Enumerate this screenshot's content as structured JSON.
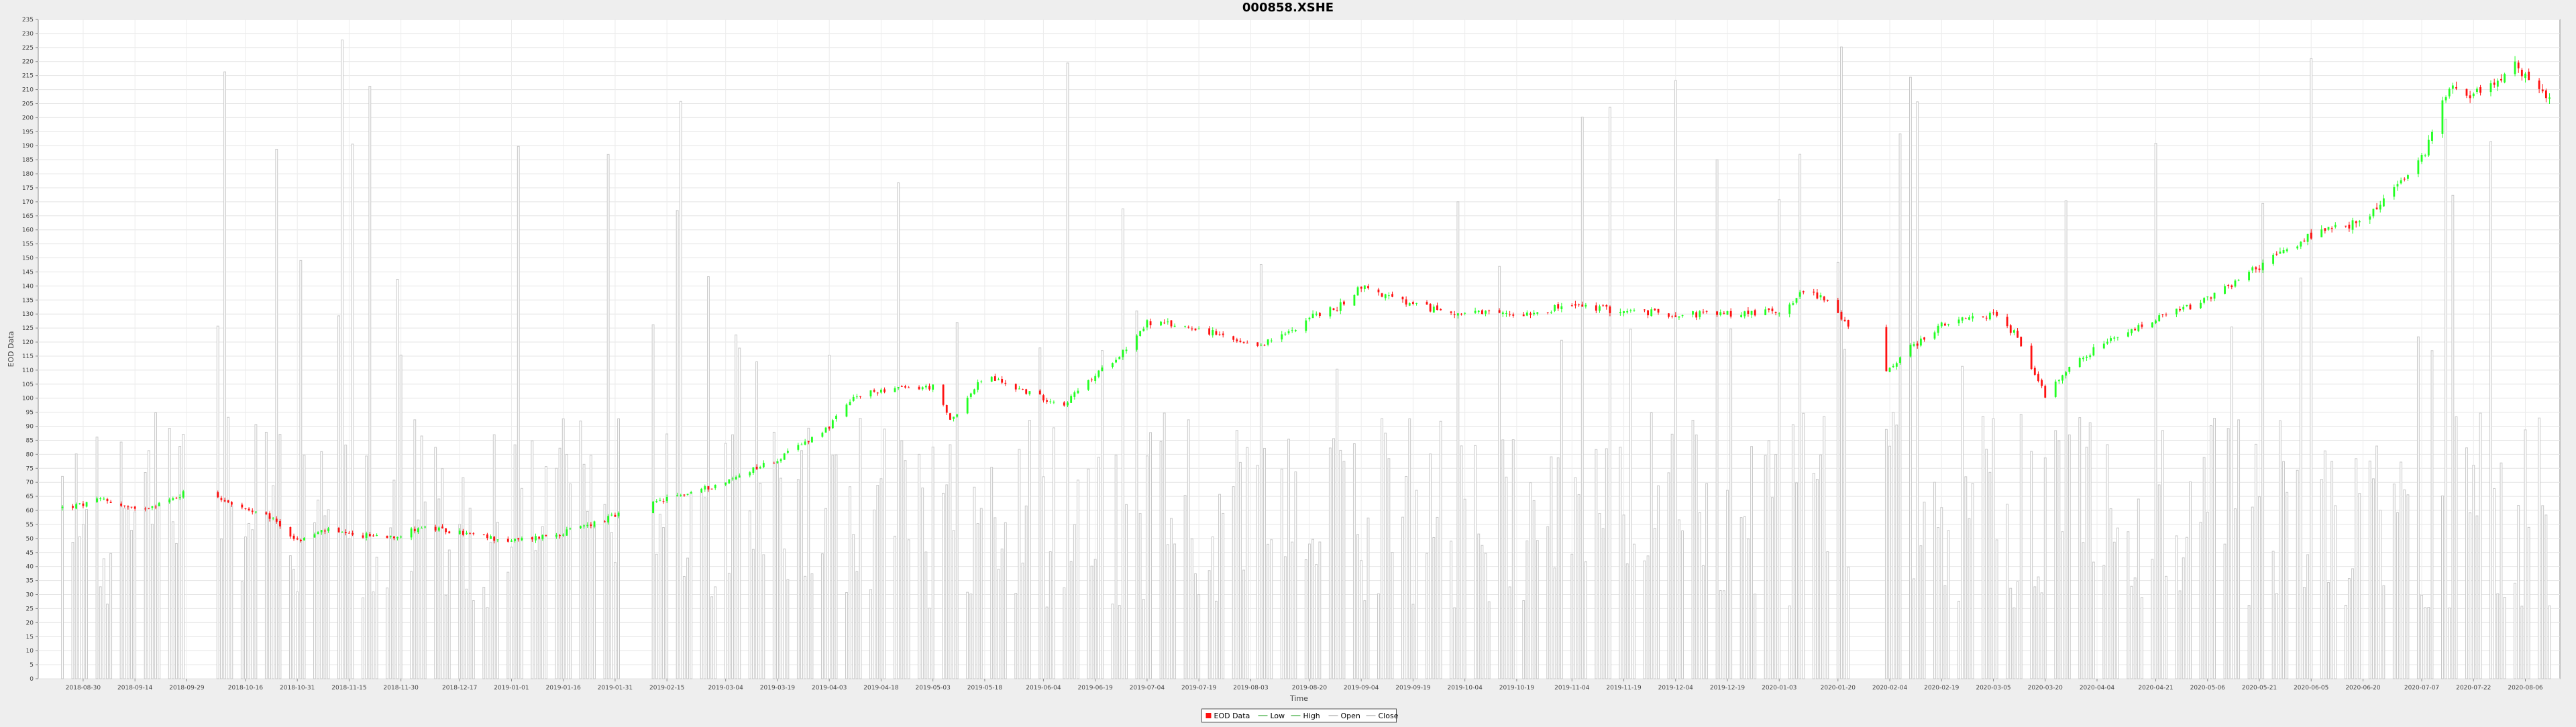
{
  "chart_data": {
    "type": "candlestick",
    "title": "000858.XSHE",
    "xlabel": "Time",
    "ylabel": "EOD Data",
    "ylim": [
      0,
      235
    ],
    "ytick_step": 5,
    "grid": true,
    "legend_position": "bottom-center",
    "legend": [
      "EOD Data",
      "Low",
      "High",
      "Open",
      "Close"
    ],
    "x_ticks": [
      "2018-08-30",
      "2018-09-14",
      "2018-09-29",
      "2018-10-16",
      "2018-10-31",
      "2018-11-15",
      "2018-11-30",
      "2018-12-17",
      "2019-01-01",
      "2019-01-16",
      "2019-01-31",
      "2019-02-15",
      "2019-03-04",
      "2019-03-19",
      "2019-04-03",
      "2019-04-18",
      "2019-05-03",
      "2019-05-18",
      "2019-06-04",
      "2019-06-19",
      "2019-07-04",
      "2019-07-19",
      "2019-08-03",
      "2019-08-20",
      "2019-09-04",
      "2019-09-19",
      "2019-10-04",
      "2019-10-19",
      "2019-11-04",
      "2019-11-19",
      "2019-12-04",
      "2019-12-19",
      "2020-01-03",
      "2020-01-20",
      "2020-02-04",
      "2020-02-19",
      "2020-03-05",
      "2020-03-20",
      "2020-04-04",
      "2020-04-21",
      "2020-05-06",
      "2020-05-21",
      "2020-06-05",
      "2020-06-20",
      "2020-07-07",
      "2020-07-22",
      "2020-08-06"
    ],
    "close_anchors": [
      [
        "2018-08-24",
        61
      ],
      [
        "2018-08-30",
        62
      ],
      [
        "2018-09-05",
        64
      ],
      [
        "2018-09-14",
        60
      ],
      [
        "2018-09-25",
        64
      ],
      [
        "2018-09-29",
        67
      ],
      [
        "2018-10-08",
        65
      ],
      [
        "2018-10-16",
        60
      ],
      [
        "2018-10-24",
        57
      ],
      [
        "2018-10-31",
        49
      ],
      [
        "2018-11-08",
        53
      ],
      [
        "2018-11-15",
        51
      ],
      [
        "2018-11-30",
        51
      ],
      [
        "2018-12-05",
        54
      ],
      [
        "2018-12-17",
        52
      ],
      [
        "2019-01-01",
        49
      ],
      [
        "2019-01-16",
        52
      ],
      [
        "2019-01-31",
        58
      ],
      [
        "2019-02-15",
        64
      ],
      [
        "2019-03-04",
        70
      ],
      [
        "2019-03-12",
        75
      ],
      [
        "2019-03-19",
        78
      ],
      [
        "2019-04-03",
        90
      ],
      [
        "2019-04-10",
        100
      ],
      [
        "2019-04-18",
        103
      ],
      [
        "2019-05-03",
        104
      ],
      [
        "2019-05-08",
        92
      ],
      [
        "2019-05-18",
        108
      ],
      [
        "2019-06-04",
        100
      ],
      [
        "2019-06-10",
        98
      ],
      [
        "2019-06-19",
        108
      ],
      [
        "2019-06-28",
        118
      ],
      [
        "2019-07-04",
        127
      ],
      [
        "2019-07-19",
        125
      ],
      [
        "2019-08-03",
        118
      ],
      [
        "2019-08-12",
        122
      ],
      [
        "2019-08-20",
        129
      ],
      [
        "2019-08-28",
        132
      ],
      [
        "2019-09-04",
        140
      ],
      [
        "2019-09-12",
        136
      ],
      [
        "2019-09-19",
        133
      ],
      [
        "2019-10-04",
        130
      ],
      [
        "2019-10-19",
        130
      ],
      [
        "2019-11-04",
        133
      ],
      [
        "2019-11-19",
        131
      ],
      [
        "2019-12-04",
        130
      ],
      [
        "2019-12-19",
        130
      ],
      [
        "2020-01-03",
        131
      ],
      [
        "2020-01-10",
        138
      ],
      [
        "2020-01-16",
        136
      ],
      [
        "2020-01-23",
        125
      ],
      [
        "2020-02-03",
        110
      ],
      [
        "2020-02-10",
        118
      ],
      [
        "2020-02-19",
        126
      ],
      [
        "2020-03-05",
        130
      ],
      [
        "2020-03-12",
        122
      ],
      [
        "2020-03-20",
        101
      ],
      [
        "2020-03-26",
        110
      ],
      [
        "2020-04-04",
        118
      ],
      [
        "2020-04-21",
        128
      ],
      [
        "2020-05-06",
        135
      ],
      [
        "2020-05-21",
        147
      ],
      [
        "2020-06-05",
        158
      ],
      [
        "2020-06-20",
        163
      ],
      [
        "2020-07-07",
        185
      ],
      [
        "2020-07-15",
        212
      ],
      [
        "2020-07-22",
        208
      ],
      [
        "2020-08-03",
        218
      ],
      [
        "2020-08-13",
        206
      ]
    ],
    "gaps": [
      [
        "2018-10-01",
        "2018-10-07"
      ],
      [
        "2019-02-04",
        "2019-02-10"
      ],
      [
        "2020-01-24",
        "2020-02-02"
      ]
    ],
    "volume_note": "bars are scaled volume"
  }
}
